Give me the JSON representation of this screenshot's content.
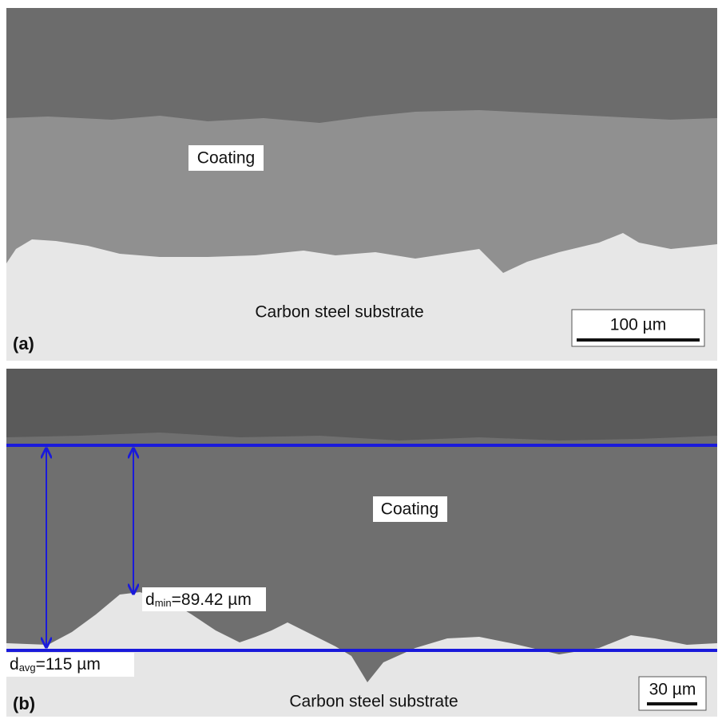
{
  "panels": [
    {
      "label": "(a)",
      "coating": "Coating",
      "substrate": "Carbon steel substrate",
      "scale_bar": "100 µm"
    },
    {
      "label": "(b)",
      "coating": "Coating",
      "substrate": "Carbon steel substrate",
      "scale_bar": "30 µm",
      "d_min": {
        "symbol": "d",
        "subscript": "min",
        "text": "=89.42 µm"
      },
      "d_avg": {
        "symbol": "d",
        "subscript": "avg",
        "text": "=115 µm"
      }
    }
  ]
}
